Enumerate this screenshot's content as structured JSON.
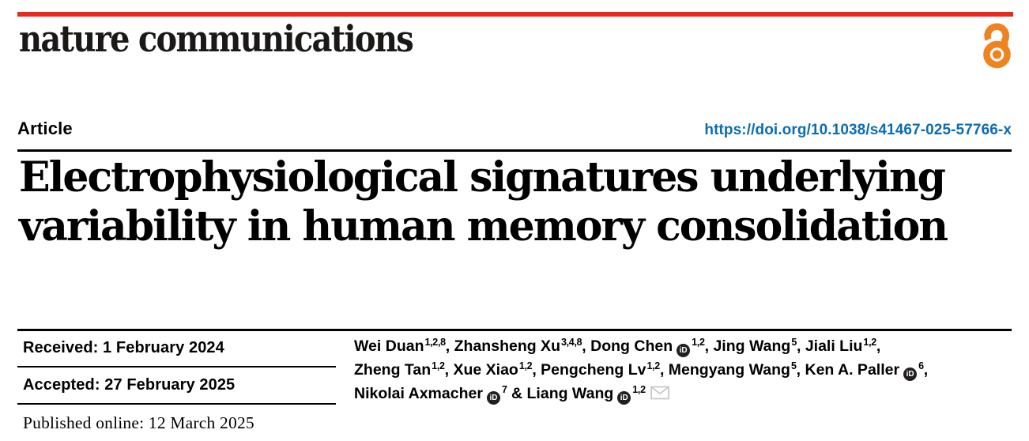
{
  "colors": {
    "masthead_bar": "#e8291c",
    "open_access": "#ee8420",
    "doi_link": "#0b6cb4",
    "orcid_badge": "#231f20",
    "email_icon": "#c9c9c9",
    "text": "#000000"
  },
  "masthead": {
    "journal_name": "nature communications",
    "open_access_icon": "open-access-padlock"
  },
  "header": {
    "article_label": "Article",
    "doi_link": "https://doi.org/10.1038/s41467-025-57766-x"
  },
  "title": {
    "line1": "Electrophysiological signatures underlying",
    "line2": "variability in human memory consolidation"
  },
  "dates": {
    "received": "Received: 1 February 2024",
    "accepted": "Accepted: 27 February 2025",
    "published_online": "Published online: 12 March 2025"
  },
  "authors": {
    "orcid_icon_label": "iD",
    "lines": [
      {
        "segments": [
          {
            "name": "Wei Duan",
            "sup": "1,2,8",
            "orcid": false,
            "sep": ", "
          },
          {
            "name": "Zhansheng Xu",
            "sup": "3,4,8",
            "orcid": false,
            "sep": ", "
          },
          {
            "name": "Dong Chen",
            "sup": "1,2",
            "orcid": true,
            "sep": ", "
          },
          {
            "name": "Jing Wang",
            "sup": "5",
            "orcid": false,
            "sep": ", "
          },
          {
            "name": "Jiali Liu",
            "sup": "1,2",
            "orcid": false,
            "sep": ","
          }
        ]
      },
      {
        "segments": [
          {
            "name": "Zheng Tan",
            "sup": "1,2",
            "orcid": false,
            "sep": ", "
          },
          {
            "name": "Xue Xiao",
            "sup": "1,2",
            "orcid": false,
            "sep": ", "
          },
          {
            "name": "Pengcheng Lv",
            "sup": "1,2",
            "orcid": false,
            "sep": ", "
          },
          {
            "name": "Mengyang Wang",
            "sup": "5",
            "orcid": false,
            "sep": ", "
          },
          {
            "name": "Ken A. Paller",
            "sup": "6",
            "orcid": true,
            "sep": ","
          }
        ]
      },
      {
        "segments": [
          {
            "name": "Nikolai Axmacher",
            "sup": "7",
            "orcid": true,
            "sep": " & "
          },
          {
            "name": "Liang Wang",
            "sup": "1,2",
            "orcid": true,
            "envelope": true,
            "sep": ""
          }
        ]
      }
    ]
  }
}
